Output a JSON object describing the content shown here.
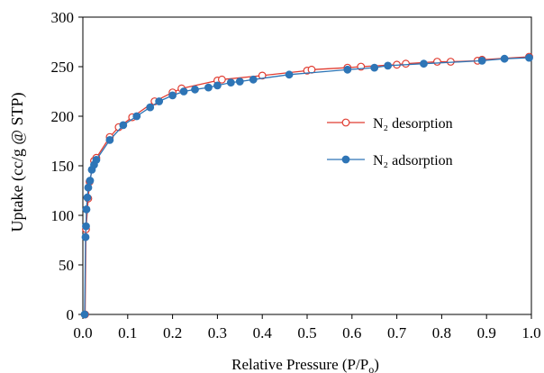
{
  "chart_data": {
    "type": "scatter",
    "title": "",
    "xlabel": "Relative Pressure (P/P",
    "xlabel_sub": "o",
    "xlabel_end": ")",
    "ylabel": "Uptake  (cc/g @ STP)",
    "xlim": [
      0.0,
      1.0
    ],
    "ylim": [
      0,
      300
    ],
    "x_ticks": [
      "0.0",
      "0.1",
      "0.2",
      "0.3",
      "0.4",
      "0.5",
      "0.6",
      "0.7",
      "0.8",
      "0.9",
      "1.0"
    ],
    "y_ticks": [
      "0",
      "50",
      "100",
      "150",
      "200",
      "250",
      "300"
    ],
    "grid": false,
    "legend_position": "right-middle",
    "series": [
      {
        "name": "N₂ desorption",
        "color": "#e03c31",
        "marker": "open-circle",
        "x": [
          0.005,
          0.007,
          0.012,
          0.015,
          0.025,
          0.03,
          0.06,
          0.08,
          0.11,
          0.16,
          0.2,
          0.22,
          0.3,
          0.31,
          0.4,
          0.5,
          0.51,
          0.59,
          0.62,
          0.7,
          0.72,
          0.79,
          0.82,
          0.88,
          0.89,
          0.995
        ],
        "y": [
          0,
          86,
          117,
          134,
          155,
          158,
          179,
          189,
          199,
          215,
          224,
          228,
          236,
          237,
          241,
          246,
          247,
          249,
          250,
          252,
          253,
          255,
          255,
          256,
          257,
          260
        ]
      },
      {
        "name": "N₂ adsorption",
        "color": "#2e75b6",
        "marker": "filled-circle",
        "x": [
          0.004,
          0.006,
          0.007,
          0.008,
          0.01,
          0.012,
          0.016,
          0.02,
          0.025,
          0.03,
          0.06,
          0.09,
          0.12,
          0.15,
          0.17,
          0.2,
          0.225,
          0.25,
          0.28,
          0.3,
          0.33,
          0.35,
          0.38,
          0.46,
          0.59,
          0.65,
          0.68,
          0.76,
          0.89,
          0.94,
          0.995
        ],
        "y": [
          0,
          78,
          89,
          106,
          118,
          128,
          135,
          146,
          151,
          156,
          176,
          191,
          200,
          209,
          215,
          221,
          225,
          227,
          229,
          231,
          234,
          235,
          237,
          242,
          247,
          249,
          251,
          253,
          256,
          258,
          259
        ]
      }
    ]
  }
}
